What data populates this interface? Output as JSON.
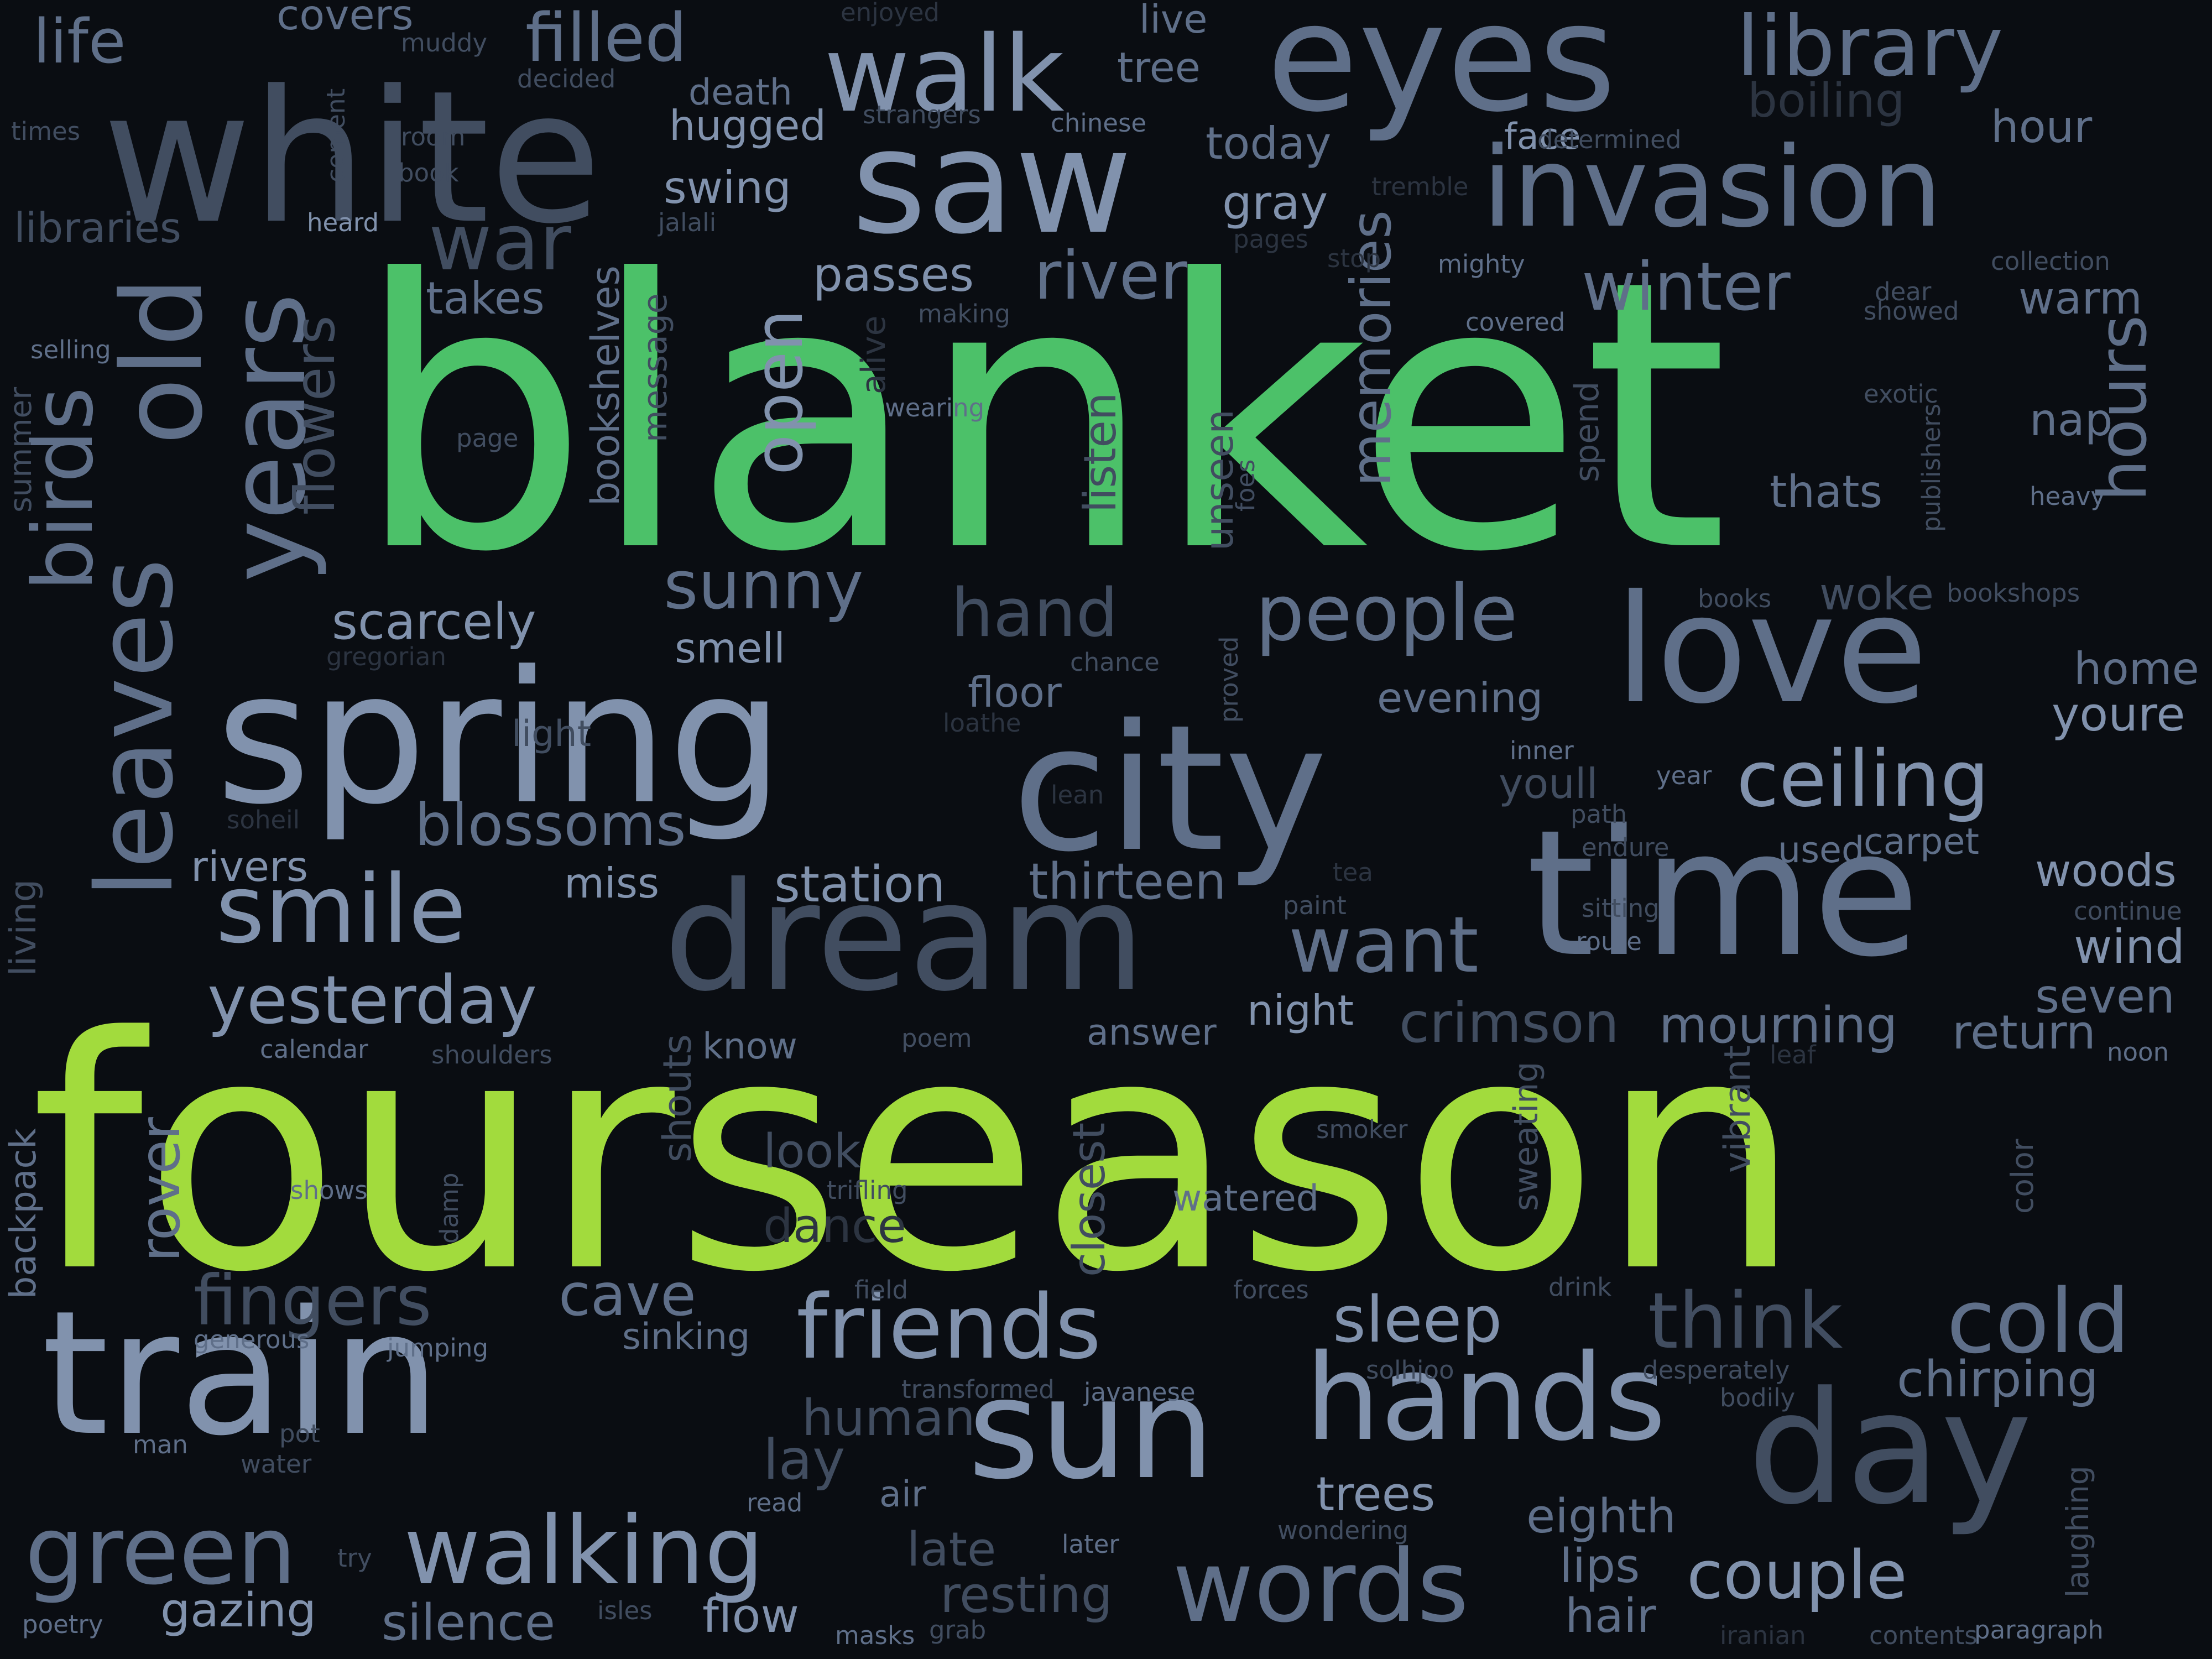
{
  "palette": {
    "background": "#0a0d12",
    "green": "#4cc169",
    "lime": "#a2db3d",
    "light": "#8192ad",
    "mid": "#5f6f89",
    "dark": "#414d60",
    "faint": "#2c3441"
  },
  "words": [
    {
      "text": "blanket",
      "weight": 100,
      "color": "green"
    },
    {
      "text": "fourseason",
      "weight": 96,
      "color": "lime"
    },
    {
      "text": "white",
      "weight": 52,
      "color": "dark"
    },
    {
      "text": "spring",
      "weight": 48,
      "color": "light"
    },
    {
      "text": "city",
      "weight": 46,
      "color": "mid"
    },
    {
      "text": "time",
      "weight": 46,
      "color": "mid"
    },
    {
      "text": "train",
      "weight": 44,
      "color": "light"
    },
    {
      "text": "dream",
      "weight": 42,
      "color": "dark"
    },
    {
      "text": "love",
      "weight": 40,
      "color": "mid"
    },
    {
      "text": "eyes",
      "weight": 40,
      "color": "mid"
    },
    {
      "text": "saw",
      "weight": 38,
      "color": "light"
    },
    {
      "text": "day",
      "weight": 40,
      "color": "dark"
    },
    {
      "text": "sun",
      "weight": 36,
      "color": "light"
    },
    {
      "text": "hands",
      "weight": 32,
      "color": "light"
    },
    {
      "text": "invasion",
      "weight": 30,
      "color": "mid"
    },
    {
      "text": "old",
      "weight": 30,
      "color": "mid"
    },
    {
      "text": "years",
      "weight": 28,
      "color": "mid"
    },
    {
      "text": "leaves",
      "weight": 28,
      "color": "mid"
    },
    {
      "text": "words",
      "weight": 28,
      "color": "mid"
    },
    {
      "text": "walk",
      "weight": 26,
      "color": "light"
    },
    {
      "text": "walking",
      "weight": 26,
      "color": "light"
    },
    {
      "text": "smile",
      "weight": 26,
      "color": "light"
    },
    {
      "text": "green",
      "weight": 26,
      "color": "mid"
    },
    {
      "text": "friends",
      "weight": 24,
      "color": "light"
    },
    {
      "text": "cold",
      "weight": 24,
      "color": "mid"
    },
    {
      "text": "think",
      "weight": 22,
      "color": "dark"
    },
    {
      "text": "want",
      "weight": 22,
      "color": "mid"
    },
    {
      "text": "people",
      "weight": 22,
      "color": "mid"
    },
    {
      "text": "ceiling",
      "weight": 22,
      "color": "light"
    },
    {
      "text": "library",
      "weight": 22,
      "color": "mid"
    },
    {
      "text": "birds",
      "weight": 22,
      "color": "mid"
    },
    {
      "text": "war",
      "weight": 20,
      "color": "dark"
    },
    {
      "text": "filled",
      "weight": 18,
      "color": "mid"
    },
    {
      "text": "hours",
      "weight": 18,
      "color": "mid"
    },
    {
      "text": "yesterday",
      "weight": 18,
      "color": "light"
    },
    {
      "text": "couple",
      "weight": 18,
      "color": "light"
    },
    {
      "text": "life",
      "weight": 17,
      "color": "mid"
    },
    {
      "text": "winter",
      "weight": 18,
      "color": "mid"
    },
    {
      "text": "river",
      "weight": 18,
      "color": "mid"
    },
    {
      "text": "fingers",
      "weight": 18,
      "color": "dark"
    },
    {
      "text": "open",
      "weight": 18,
      "color": "light"
    },
    {
      "text": "hand",
      "weight": 18,
      "color": "dark"
    },
    {
      "text": "sunny",
      "weight": 18,
      "color": "mid"
    },
    {
      "text": "sleep",
      "weight": 18,
      "color": "light"
    },
    {
      "text": "memories",
      "weight": 16,
      "color": "mid"
    },
    {
      "text": "blossoms",
      "weight": 16,
      "color": "mid"
    },
    {
      "text": "flowers",
      "weight": 16,
      "color": "dark"
    },
    {
      "text": "crimson",
      "weight": 16,
      "color": "dark"
    },
    {
      "text": "cave",
      "weight": 16,
      "color": "mid"
    },
    {
      "text": "lay",
      "weight": 16,
      "color": "dark"
    },
    {
      "text": "rover",
      "weight": 16,
      "color": "mid"
    },
    {
      "text": "mourning",
      "weight": 14,
      "color": "mid"
    },
    {
      "text": "human",
      "weight": 14,
      "color": "dark"
    },
    {
      "text": "resting",
      "weight": 14,
      "color": "dark"
    },
    {
      "text": "chirping",
      "weight": 14,
      "color": "mid"
    },
    {
      "text": "scarcely",
      "weight": 14,
      "color": "light"
    },
    {
      "text": "thirteen",
      "weight": 14,
      "color": "mid"
    },
    {
      "text": "station",
      "weight": 14,
      "color": "light"
    },
    {
      "text": "silence",
      "weight": 14,
      "color": "mid"
    },
    {
      "text": "gazing",
      "weight": 14,
      "color": "light"
    },
    {
      "text": "boiling",
      "weight": 14,
      "color": "faint"
    },
    {
      "text": "late",
      "weight": 14,
      "color": "dark"
    },
    {
      "text": "look",
      "weight": 14,
      "color": "dark"
    },
    {
      "text": "dance",
      "weight": 14,
      "color": "faint"
    },
    {
      "text": "closest",
      "weight": 14,
      "color": "dark"
    },
    {
      "text": "bookshelves",
      "weight": 12,
      "color": "mid"
    },
    {
      "text": "listen",
      "weight": 12,
      "color": "dark"
    },
    {
      "text": "unseen",
      "weight": 12,
      "color": "dark"
    },
    {
      "text": "trees",
      "weight": 14,
      "color": "light"
    },
    {
      "text": "eighth",
      "weight": 14,
      "color": "mid"
    },
    {
      "text": "lips",
      "weight": 14,
      "color": "mid"
    },
    {
      "text": "hair",
      "weight": 14,
      "color": "mid"
    },
    {
      "text": "flow",
      "weight": 14,
      "color": "light"
    },
    {
      "text": "return",
      "weight": 14,
      "color": "mid"
    },
    {
      "text": "seven",
      "weight": 14,
      "color": "mid"
    },
    {
      "text": "wind",
      "weight": 14,
      "color": "light"
    },
    {
      "text": "woods",
      "weight": 14,
      "color": "light"
    },
    {
      "text": "home",
      "weight": 14,
      "color": "mid"
    },
    {
      "text": "youre",
      "weight": 14,
      "color": "light"
    },
    {
      "text": "nap",
      "weight": 14,
      "color": "mid"
    },
    {
      "text": "warm",
      "weight": 14,
      "color": "mid"
    },
    {
      "text": "thats",
      "weight": 14,
      "color": "mid"
    },
    {
      "text": "woke",
      "weight": 14,
      "color": "dark"
    },
    {
      "text": "hour",
      "weight": 14,
      "color": "mid"
    },
    {
      "text": "today",
      "weight": 14,
      "color": "mid"
    },
    {
      "text": "gray",
      "weight": 14,
      "color": "light"
    },
    {
      "text": "passes",
      "weight": 14,
      "color": "light"
    },
    {
      "text": "takes",
      "weight": 14,
      "color": "mid"
    },
    {
      "text": "swing",
      "weight": 14,
      "color": "light"
    },
    {
      "text": "hugged",
      "weight": 14,
      "color": "light"
    },
    {
      "text": "tree",
      "weight": 14,
      "color": "mid"
    },
    {
      "text": "covers",
      "weight": 14,
      "color": "mid"
    },
    {
      "text": "rivers",
      "weight": 14,
      "color": "light"
    },
    {
      "text": "miss",
      "weight": 14,
      "color": "light"
    },
    {
      "text": "smell",
      "weight": 14,
      "color": "light"
    },
    {
      "text": "evening",
      "weight": 14,
      "color": "mid"
    },
    {
      "text": "floor",
      "weight": 14,
      "color": "mid"
    },
    {
      "text": "youll",
      "weight": 14,
      "color": "dark"
    },
    {
      "text": "night",
      "weight": 14,
      "color": "light"
    },
    {
      "text": "answer",
      "weight": 12,
      "color": "mid"
    },
    {
      "text": "know",
      "weight": 12,
      "color": "mid"
    },
    {
      "text": "libraries",
      "weight": 14,
      "color": "dark"
    },
    {
      "text": "death",
      "weight": 12,
      "color": "mid"
    },
    {
      "text": "live",
      "weight": 12,
      "color": "mid"
    },
    {
      "text": "face",
      "weight": 12,
      "color": "light"
    },
    {
      "text": "carpet",
      "weight": 12,
      "color": "mid"
    },
    {
      "text": "used",
      "weight": 12,
      "color": "mid"
    },
    {
      "text": "light",
      "weight": 12,
      "color": "dark"
    },
    {
      "text": "sweating",
      "weight": 12,
      "color": "dark"
    },
    {
      "text": "vibrant",
      "weight": 12,
      "color": "dark"
    },
    {
      "text": "shouts",
      "weight": 12,
      "color": "dark"
    },
    {
      "text": "message",
      "weight": 12,
      "color": "dark"
    },
    {
      "text": "alive",
      "weight": 12,
      "color": "faint"
    },
    {
      "text": "spend",
      "weight": 12,
      "color": "dark"
    },
    {
      "text": "sinking",
      "weight": 12,
      "color": "mid"
    },
    {
      "text": "watered",
      "weight": 12,
      "color": "mid"
    },
    {
      "text": "air",
      "weight": 12,
      "color": "mid"
    },
    {
      "text": "backpack",
      "weight": 12,
      "color": "mid"
    },
    {
      "text": "living",
      "weight": 12,
      "color": "dark"
    },
    {
      "text": "summer",
      "weight": 12,
      "color": "dark"
    },
    {
      "text": "laughing",
      "weight": 12,
      "color": "dark"
    },
    {
      "text": "color",
      "weight": 12,
      "color": "dark"
    },
    {
      "text": "muddy",
      "weight": 10,
      "color": "dark"
    },
    {
      "text": "decided",
      "weight": 10,
      "color": "dark"
    },
    {
      "text": "enjoyed",
      "weight": 10,
      "color": "faint"
    },
    {
      "text": "strangers",
      "weight": 10,
      "color": "dark"
    },
    {
      "text": "chinese",
      "weight": 10,
      "color": "mid"
    },
    {
      "text": "determined",
      "weight": 10,
      "color": "dark"
    },
    {
      "text": "tremble",
      "weight": 10,
      "color": "faint"
    },
    {
      "text": "room",
      "weight": 10,
      "color": "dark"
    },
    {
      "text": "book",
      "weight": 10,
      "color": "dark"
    },
    {
      "text": "times",
      "weight": 10,
      "color": "dark"
    },
    {
      "text": "cement",
      "weight": 10,
      "color": "dark"
    },
    {
      "text": "heard",
      "weight": 10,
      "color": "light"
    },
    {
      "text": "jalali",
      "weight": 10,
      "color": "dark"
    },
    {
      "text": "pages",
      "weight": 10,
      "color": "faint"
    },
    {
      "text": "stop",
      "weight": 10,
      "color": "faint"
    },
    {
      "text": "mighty",
      "weight": 10,
      "color": "mid"
    },
    {
      "text": "collection",
      "weight": 10,
      "color": "dark"
    },
    {
      "text": "selling",
      "weight": 10,
      "color": "mid"
    },
    {
      "text": "making",
      "weight": 10,
      "color": "dark"
    },
    {
      "text": "covered",
      "weight": 10,
      "color": "mid"
    },
    {
      "text": "dear",
      "weight": 10,
      "color": "dark"
    },
    {
      "text": "showed",
      "weight": 10,
      "color": "dark"
    },
    {
      "text": "wearing",
      "weight": 10,
      "color": "mid"
    },
    {
      "text": "exotic",
      "weight": 10,
      "color": "dark"
    },
    {
      "text": "page",
      "weight": 10,
      "color": "dark"
    },
    {
      "text": "publishers",
      "weight": 10,
      "color": "dark"
    },
    {
      "text": "heavy",
      "weight": 10,
      "color": "mid"
    },
    {
      "text": "foes",
      "weight": 10,
      "color": "dark"
    },
    {
      "text": "books",
      "weight": 10,
      "color": "dark"
    },
    {
      "text": "bookshops",
      "weight": 10,
      "color": "dark"
    },
    {
      "text": "gregorian",
      "weight": 10,
      "color": "faint"
    },
    {
      "text": "chance",
      "weight": 10,
      "color": "dark"
    },
    {
      "text": "proved",
      "weight": 10,
      "color": "dark"
    },
    {
      "text": "loathe",
      "weight": 10,
      "color": "faint"
    },
    {
      "text": "inner",
      "weight": 10,
      "color": "mid"
    },
    {
      "text": "year",
      "weight": 10,
      "color": "mid"
    },
    {
      "text": "path",
      "weight": 10,
      "color": "dark"
    },
    {
      "text": "lean",
      "weight": 10,
      "color": "faint"
    },
    {
      "text": "soheil",
      "weight": 10,
      "color": "faint"
    },
    {
      "text": "endure",
      "weight": 10,
      "color": "dark"
    },
    {
      "text": "tea",
      "weight": 10,
      "color": "faint"
    },
    {
      "text": "paint",
      "weight": 10,
      "color": "dark"
    },
    {
      "text": "sitting",
      "weight": 10,
      "color": "dark"
    },
    {
      "text": "route",
      "weight": 10,
      "color": "mid"
    },
    {
      "text": "continue",
      "weight": 10,
      "color": "dark"
    },
    {
      "text": "calendar",
      "weight": 10,
      "color": "mid"
    },
    {
      "text": "shoulders",
      "weight": 10,
      "color": "dark"
    },
    {
      "text": "poem",
      "weight": 10,
      "color": "dark"
    },
    {
      "text": "leaf",
      "weight": 10,
      "color": "faint"
    },
    {
      "text": "noon",
      "weight": 10,
      "color": "mid"
    },
    {
      "text": "smoker",
      "weight": 10,
      "color": "dark"
    },
    {
      "text": "shows",
      "weight": 10,
      "color": "mid"
    },
    {
      "text": "damp",
      "weight": 10,
      "color": "dark"
    },
    {
      "text": "trifling",
      "weight": 10,
      "color": "dark"
    },
    {
      "text": "field",
      "weight": 10,
      "color": "dark"
    },
    {
      "text": "forces",
      "weight": 10,
      "color": "dark"
    },
    {
      "text": "drink",
      "weight": 10,
      "color": "dark"
    },
    {
      "text": "generous",
      "weight": 10,
      "color": "mid"
    },
    {
      "text": "jumping",
      "weight": 10,
      "color": "mid"
    },
    {
      "text": "solhjoo",
      "weight": 10,
      "color": "dark"
    },
    {
      "text": "desperately",
      "weight": 10,
      "color": "dark"
    },
    {
      "text": "bodily",
      "weight": 10,
      "color": "dark"
    },
    {
      "text": "transformed",
      "weight": 10,
      "color": "dark"
    },
    {
      "text": "javanese",
      "weight": 10,
      "color": "mid"
    },
    {
      "text": "man",
      "weight": 10,
      "color": "mid"
    },
    {
      "text": "pot",
      "weight": 10,
      "color": "dark"
    },
    {
      "text": "water",
      "weight": 10,
      "color": "dark"
    },
    {
      "text": "read",
      "weight": 10,
      "color": "mid"
    },
    {
      "text": "later",
      "weight": 10,
      "color": "mid"
    },
    {
      "text": "wondering",
      "weight": 10,
      "color": "dark"
    },
    {
      "text": "try",
      "weight": 10,
      "color": "dark"
    },
    {
      "text": "poetry",
      "weight": 10,
      "color": "mid"
    },
    {
      "text": "isles",
      "weight": 10,
      "color": "dark"
    },
    {
      "text": "masks",
      "weight": 10,
      "color": "mid"
    },
    {
      "text": "grab",
      "weight": 10,
      "color": "dark"
    },
    {
      "text": "iranian",
      "weight": 10,
      "color": "faint"
    },
    {
      "text": "contents",
      "weight": 10,
      "color": "dark"
    },
    {
      "text": "paragraph",
      "weight": 10,
      "color": "mid"
    }
  ]
}
